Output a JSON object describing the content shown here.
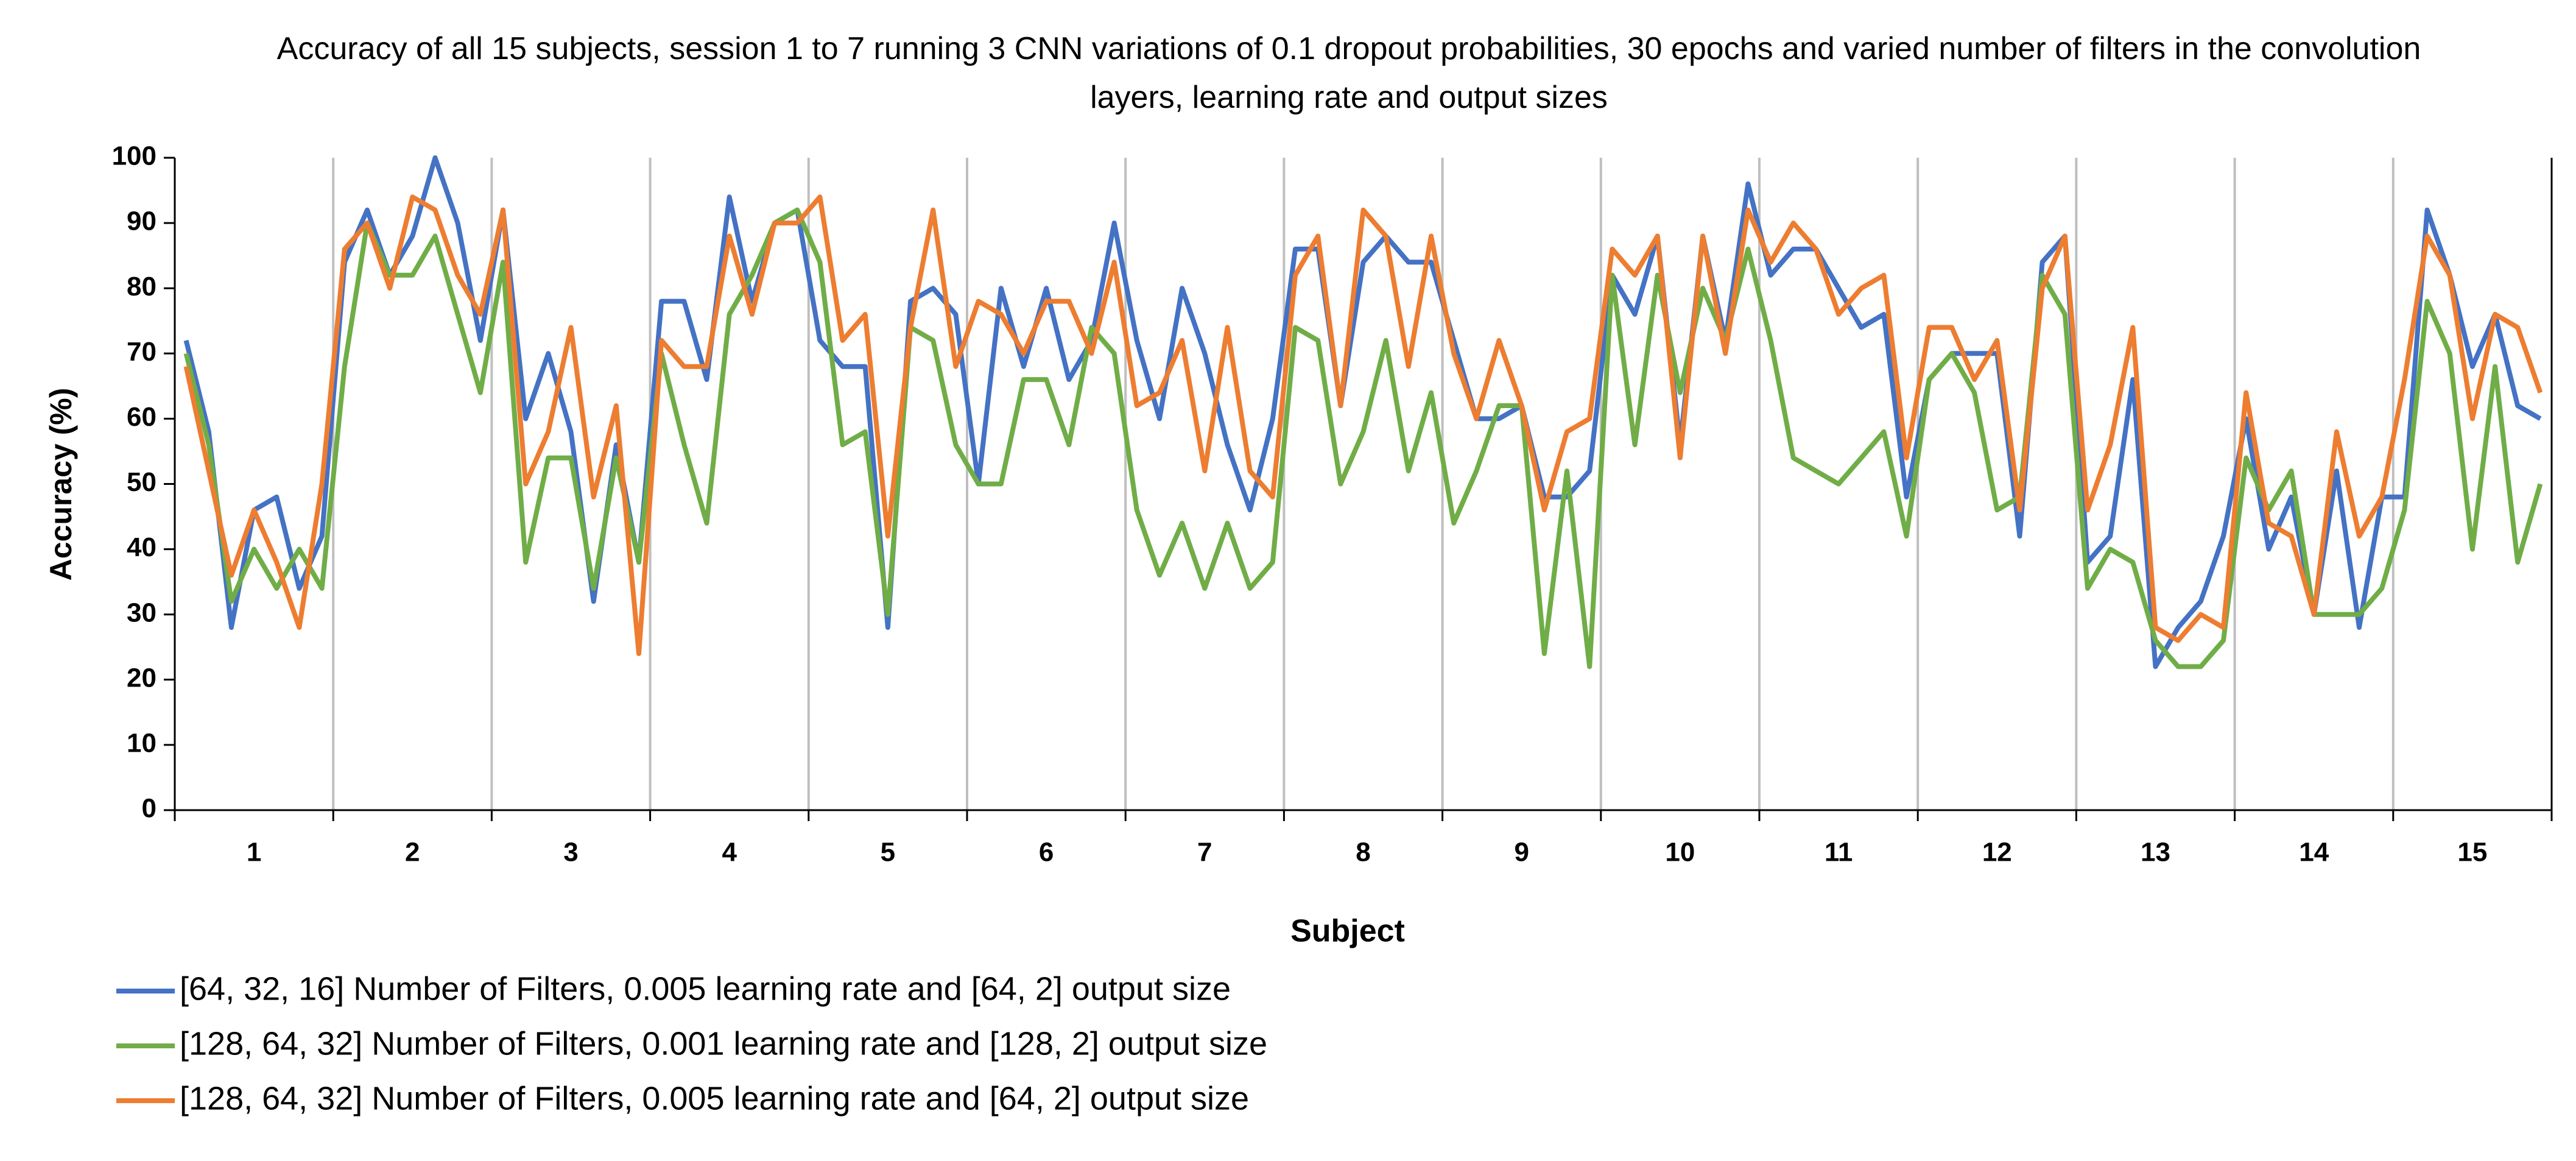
{
  "chart_data": {
    "type": "line",
    "title": "Accuracy of all 15 subjects, session 1 to 7 running 3 CNN variations of 0.1 dropout probabilities, 30 epochs and varied number of filters in the convolution layers, learning rate and output sizes",
    "x_label": "Subject",
    "y_label": "Accuracy (%)",
    "categories": [
      null,
      null,
      null,
      "1",
      null,
      null,
      null,
      null,
      null,
      null,
      "2",
      null,
      null,
      null,
      null,
      null,
      null,
      "3",
      null,
      null,
      null,
      null,
      null,
      null,
      "4",
      null,
      null,
      null,
      null,
      null,
      null,
      "5",
      null,
      null,
      null,
      null,
      null,
      null,
      "6",
      null,
      null,
      null,
      null,
      null,
      null,
      "7",
      null,
      null,
      null,
      null,
      null,
      null,
      "8",
      null,
      null,
      null,
      null,
      null,
      null,
      "9",
      null,
      null,
      null,
      null,
      null,
      null,
      "10",
      null,
      null,
      null,
      null,
      null,
      null,
      "11",
      null,
      null,
      null,
      null,
      null,
      null,
      "12",
      null,
      null,
      null,
      null,
      null,
      null,
      "13",
      null,
      null,
      null,
      null,
      null,
      null,
      "14",
      null,
      null,
      null,
      null,
      null,
      null,
      "15",
      null,
      null,
      null
    ],
    "ylim": [
      0,
      100
    ],
    "yticks": [
      0,
      10,
      20,
      30,
      40,
      50,
      60,
      70,
      80,
      90,
      100
    ],
    "legend": "bottom-left",
    "series": [
      {
        "name": "[64, 32, 16] Number of Filters, 0.005 learning rate and [64, 2] output size",
        "color": "#4472c4",
        "values": [
          72,
          58,
          28,
          46,
          48,
          34,
          42,
          84,
          92,
          82,
          88,
          100,
          90,
          72,
          92,
          60,
          70,
          58,
          32,
          56,
          38,
          78,
          78,
          66,
          94,
          78,
          90,
          92,
          72,
          68,
          68,
          28,
          78,
          80,
          76,
          50,
          80,
          68,
          80,
          66,
          72,
          90,
          72,
          60,
          80,
          70,
          56,
          46,
          60,
          86,
          86,
          62,
          84,
          88,
          84,
          84,
          72,
          60,
          60,
          62,
          48,
          48,
          52,
          82,
          76,
          88,
          56,
          88,
          72,
          96,
          82,
          86,
          86,
          80,
          74,
          76,
          48,
          66,
          70,
          70,
          70,
          42,
          84,
          88,
          38,
          42,
          66,
          22,
          28,
          32,
          42,
          60,
          40,
          48,
          30,
          52,
          28,
          48,
          48,
          92,
          82,
          68,
          76,
          62,
          60
        ]
      },
      {
        "name": "[128, 64, 32] Number of Filters, 0.001 learning rate and [128, 2] output size",
        "color": "#70ad47",
        "values": [
          70,
          56,
          32,
          40,
          34,
          40,
          34,
          68,
          90,
          82,
          82,
          88,
          76,
          64,
          84,
          38,
          54,
          54,
          34,
          54,
          38,
          70,
          56,
          44,
          76,
          82,
          90,
          92,
          84,
          56,
          58,
          30,
          74,
          72,
          56,
          50,
          50,
          66,
          66,
          56,
          74,
          70,
          46,
          36,
          44,
          34,
          44,
          34,
          38,
          74,
          72,
          50,
          58,
          72,
          52,
          64,
          44,
          52,
          62,
          62,
          24,
          52,
          22,
          82,
          56,
          82,
          64,
          80,
          72,
          86,
          72,
          54,
          52,
          50,
          54,
          58,
          42,
          66,
          70,
          64,
          46,
          48,
          82,
          76,
          34,
          40,
          38,
          26,
          22,
          22,
          26,
          54,
          46,
          52,
          30,
          30,
          30,
          34,
          46,
          78,
          70,
          40,
          68,
          38,
          50
        ]
      },
      {
        "name": "[128, 64, 32] Number of Filters, 0.005 learning rate and [64, 2] output size",
        "color": "#ed7d31",
        "values": [
          68,
          52,
          36,
          46,
          38,
          28,
          50,
          86,
          90,
          80,
          94,
          92,
          82,
          76,
          92,
          50,
          58,
          74,
          48,
          62,
          24,
          72,
          68,
          68,
          88,
          76,
          90,
          90,
          94,
          72,
          76,
          42,
          74,
          92,
          68,
          78,
          76,
          70,
          78,
          78,
          70,
          84,
          62,
          64,
          72,
          52,
          74,
          52,
          48,
          82,
          88,
          62,
          92,
          88,
          68,
          88,
          70,
          60,
          72,
          62,
          46,
          58,
          60,
          86,
          82,
          88,
          54,
          88,
          70,
          92,
          84,
          90,
          86,
          76,
          80,
          82,
          54,
          74,
          74,
          66,
          72,
          46,
          80,
          88,
          46,
          56,
          74,
          28,
          26,
          30,
          28,
          64,
          44,
          42,
          30,
          58,
          42,
          48,
          66,
          88,
          82,
          60,
          76,
          74,
          64
        ]
      }
    ]
  }
}
